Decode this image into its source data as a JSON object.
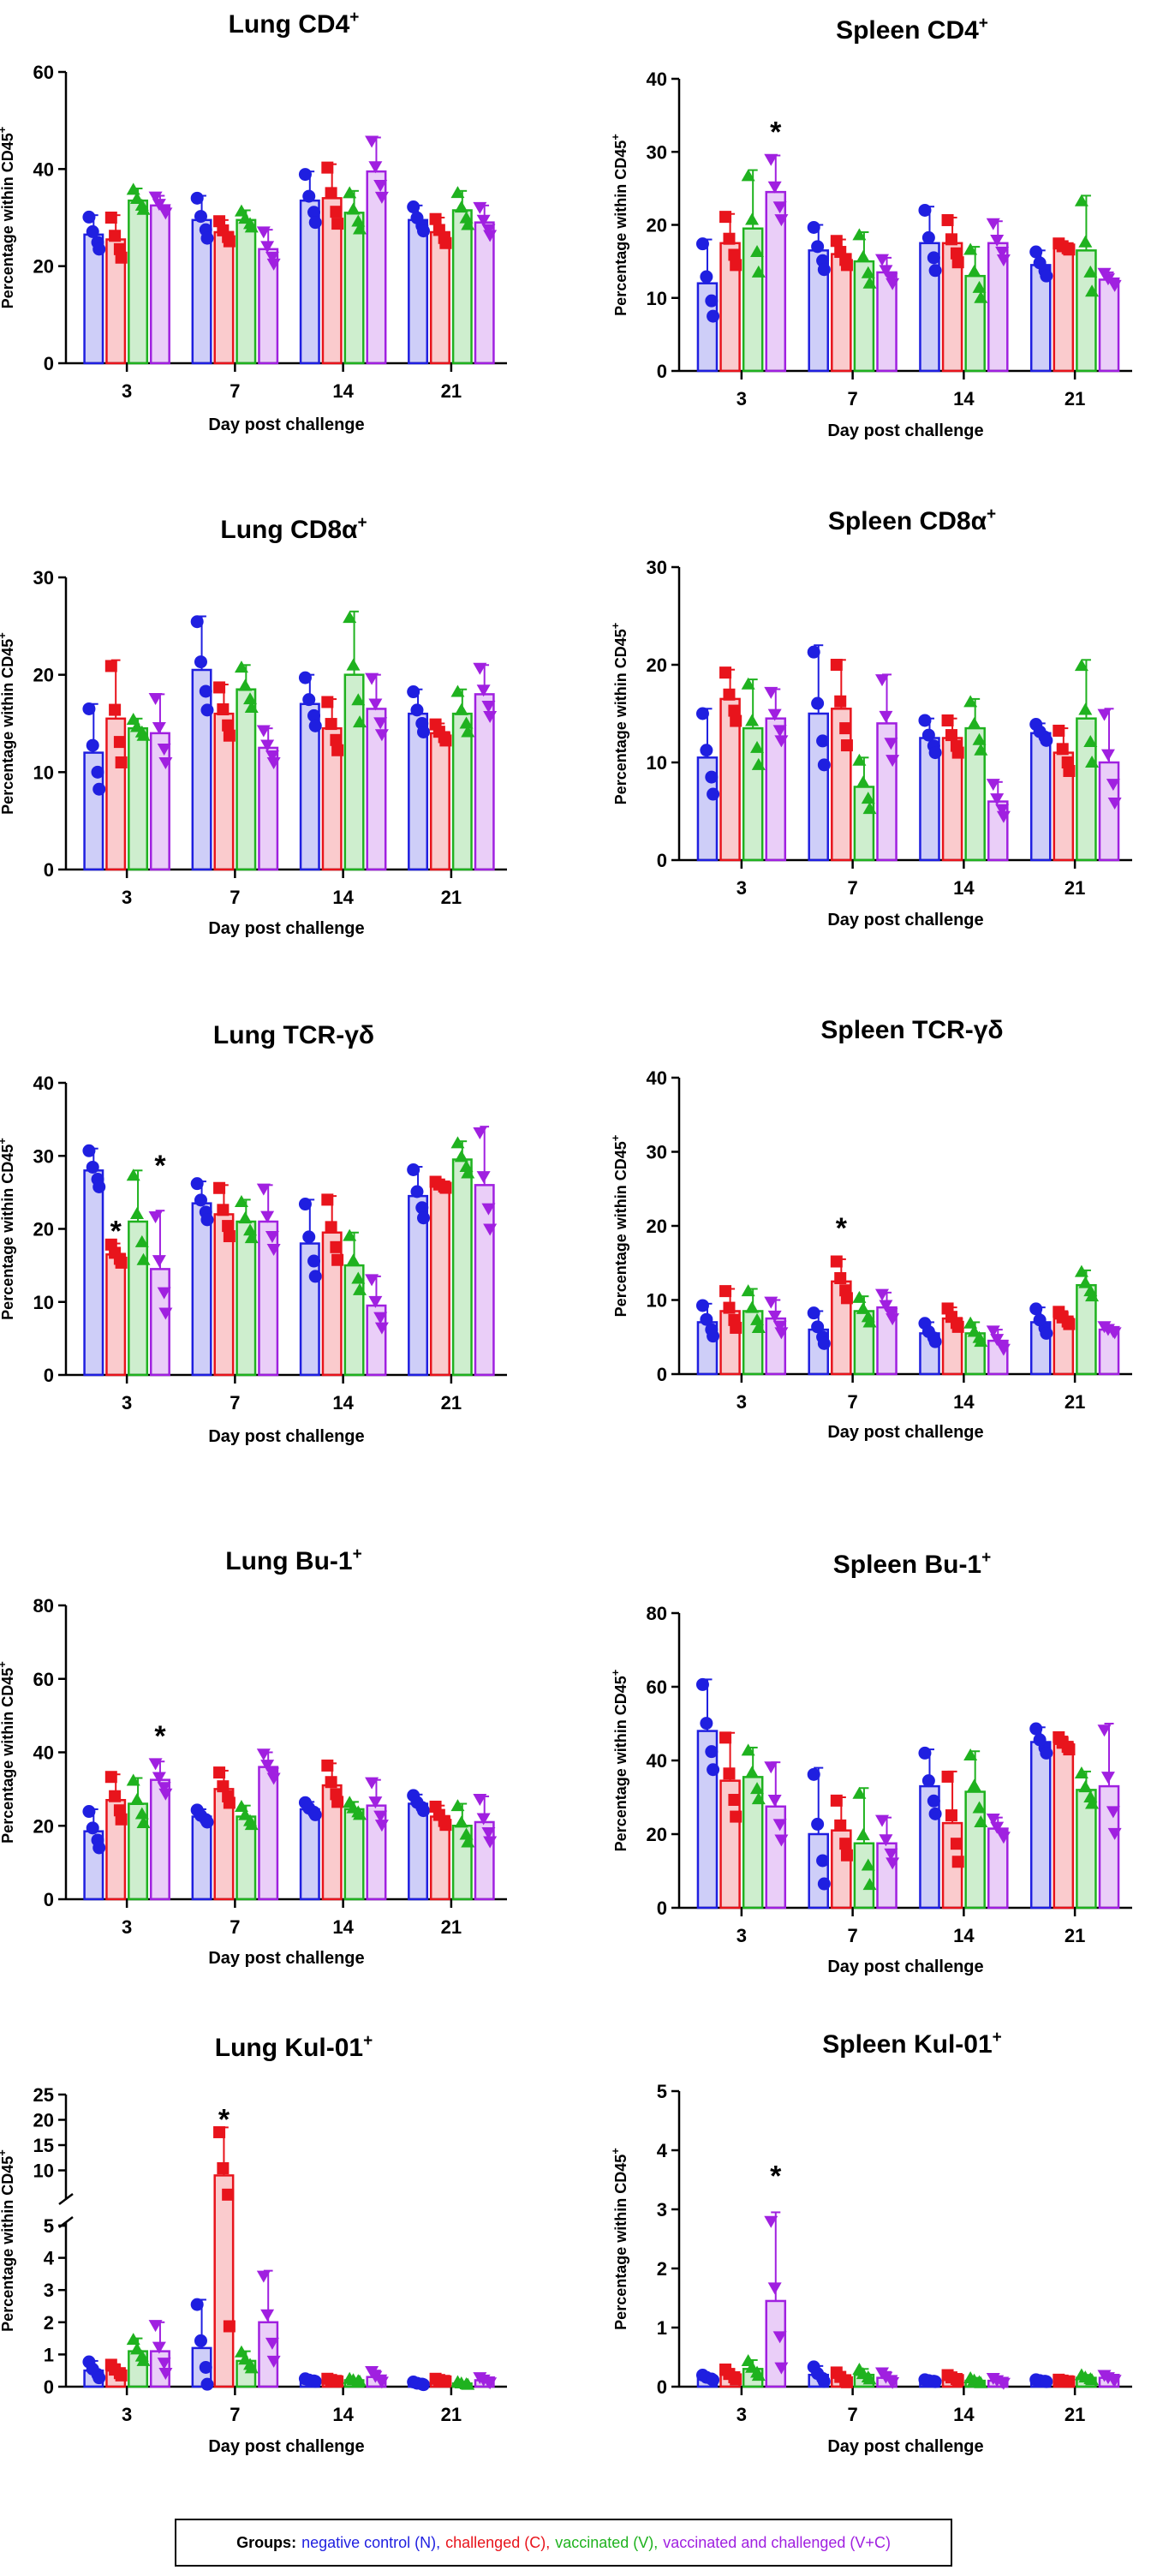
{
  "chart_data": [
    {
      "type": "bar",
      "title": "Lung CD4",
      "title_sup": "+",
      "ylabel": "Percentage within CD45",
      "ylabel_sup": "+",
      "xlabel": "Day post challenge",
      "categories": [
        "3",
        "7",
        "14",
        "21"
      ],
      "ylim": [
        0,
        60
      ],
      "yticks": [
        0,
        20,
        40,
        60
      ],
      "series": [
        {
          "name": "N",
          "values": [
            26.5,
            29.5,
            33.5,
            29.5
          ],
          "errors": [
            4,
            5,
            6,
            3
          ]
        },
        {
          "name": "C",
          "values": [
            25.5,
            27,
            34,
            27
          ],
          "errors": [
            5,
            2.5,
            7,
            3
          ]
        },
        {
          "name": "V",
          "values": [
            33.5,
            29.5,
            31,
            31.5
          ],
          "errors": [
            2.5,
            2,
            4.5,
            4
          ]
        },
        {
          "name": "V+C",
          "values": [
            32.5,
            23.5,
            39.5,
            29
          ],
          "errors": [
            2,
            4,
            7,
            3.5
          ]
        }
      ],
      "annotations": []
    },
    {
      "type": "bar",
      "title": "Spleen CD4",
      "title_sup": "+",
      "ylabel": "Percentage within CD45",
      "ylabel_sup": "+",
      "xlabel": "Day post challenge",
      "categories": [
        "3",
        "7",
        "14",
        "21"
      ],
      "ylim": [
        0,
        40
      ],
      "yticks": [
        0,
        10,
        20,
        30,
        40
      ],
      "series": [
        {
          "name": "N",
          "values": [
            12,
            16.5,
            17.5,
            14.5
          ],
          "errors": [
            6,
            3.5,
            5,
            2
          ]
        },
        {
          "name": "C",
          "values": [
            17.5,
            16,
            17.5,
            17
          ],
          "errors": [
            4,
            2,
            3.5,
            0.5
          ]
        },
        {
          "name": "V",
          "values": [
            19.5,
            15,
            13,
            16.5
          ],
          "errors": [
            8,
            4,
            4,
            7.5
          ]
        },
        {
          "name": "V+C",
          "values": [
            24.5,
            13.5,
            17.5,
            12.5
          ],
          "errors": [
            5,
            2,
            3,
            1
          ]
        }
      ],
      "annotations": [
        {
          "text": "*",
          "category": "3",
          "series": "V+C",
          "value": 33
        }
      ]
    },
    {
      "type": "bar",
      "title": "Lung CD8α",
      "title_sup": "+",
      "ylabel": "Percentage within CD45",
      "ylabel_sup": "+",
      "xlabel": "Day post challenge",
      "categories": [
        "3",
        "7",
        "14",
        "21"
      ],
      "ylim": [
        0,
        30
      ],
      "yticks": [
        0,
        10,
        20,
        30
      ],
      "series": [
        {
          "name": "N",
          "values": [
            12,
            20.5,
            17,
            16
          ],
          "errors": [
            5,
            5.5,
            3,
            2.5
          ]
        },
        {
          "name": "C",
          "values": [
            15.5,
            16,
            14.5,
            14
          ],
          "errors": [
            6,
            3,
            3,
            1
          ]
        },
        {
          "name": "V",
          "values": [
            14.5,
            18.5,
            20,
            16
          ],
          "errors": [
            1,
            2.5,
            6.5,
            2.5
          ]
        },
        {
          "name": "V+C",
          "values": [
            14,
            12.5,
            16.5,
            18
          ],
          "errors": [
            4,
            2,
            3.5,
            3
          ]
        }
      ],
      "annotations": []
    },
    {
      "type": "bar",
      "title": "Spleen CD8α",
      "title_sup": "+",
      "ylabel": "Percentage within CD45",
      "ylabel_sup": "+",
      "xlabel": "Day post challenge",
      "categories": [
        "3",
        "7",
        "14",
        "21"
      ],
      "ylim": [
        0,
        30
      ],
      "yticks": [
        0,
        10,
        20,
        30
      ],
      "series": [
        {
          "name": "N",
          "values": [
            10.5,
            15,
            12.5,
            13
          ],
          "errors": [
            5,
            7,
            2,
            1
          ]
        },
        {
          "name": "C",
          "values": [
            16.5,
            15.5,
            12.5,
            11
          ],
          "errors": [
            3,
            5,
            2,
            2.5
          ]
        },
        {
          "name": "V",
          "values": [
            13.5,
            7.5,
            13.5,
            14.5
          ],
          "errors": [
            5,
            3,
            3,
            6
          ]
        },
        {
          "name": "V+C",
          "values": [
            14.5,
            14,
            6,
            10
          ],
          "errors": [
            3,
            5,
            2,
            5.5
          ]
        }
      ],
      "annotations": []
    },
    {
      "type": "bar",
      "title": "Lung TCR-γδ",
      "title_sup": "",
      "ylabel": "Percentage within CD45",
      "ylabel_sup": "+",
      "xlabel": "Day post challenge",
      "categories": [
        "3",
        "7",
        "14",
        "21"
      ],
      "ylim": [
        0,
        40
      ],
      "yticks": [
        0,
        10,
        20,
        30,
        40
      ],
      "series": [
        {
          "name": "N",
          "values": [
            28,
            23.5,
            18,
            24.5
          ],
          "errors": [
            3,
            3,
            6,
            4
          ]
        },
        {
          "name": "C",
          "values": [
            16.5,
            22,
            19.5,
            26
          ],
          "errors": [
            1.5,
            4,
            5,
            0.5
          ]
        },
        {
          "name": "V",
          "values": [
            21,
            21,
            15,
            29.5
          ],
          "errors": [
            7,
            3,
            4.5,
            2.5
          ]
        },
        {
          "name": "V+C",
          "values": [
            14.5,
            21,
            9.5,
            26
          ],
          "errors": [
            8,
            5,
            4,
            8
          ]
        }
      ],
      "annotations": [
        {
          "text": "*",
          "category": "3",
          "series": "C",
          "value": 20
        },
        {
          "text": "*",
          "category": "3",
          "series": "V+C",
          "value": 29
        }
      ]
    },
    {
      "type": "bar",
      "title": "Spleen TCR-γδ",
      "title_sup": "",
      "ylabel": "Percentage within CD45",
      "ylabel_sup": "+",
      "xlabel": "Day post challenge",
      "categories": [
        "3",
        "7",
        "14",
        "21"
      ],
      "ylim": [
        0,
        40
      ],
      "yticks": [
        0,
        10,
        20,
        30,
        40
      ],
      "series": [
        {
          "name": "N",
          "values": [
            7,
            6,
            5.5,
            7
          ],
          "errors": [
            2.5,
            2.5,
            1.5,
            2
          ]
        },
        {
          "name": "C",
          "values": [
            8.5,
            12.5,
            7.5,
            7.5
          ],
          "errors": [
            3,
            3,
            1.5,
            1
          ]
        },
        {
          "name": "V",
          "values": [
            8.5,
            8.5,
            5.5,
            12
          ],
          "errors": [
            3,
            2,
            1.5,
            2
          ]
        },
        {
          "name": "V+C",
          "values": [
            7.5,
            9,
            4.5,
            6
          ],
          "errors": [
            2.5,
            2,
            1.5,
            0.5
          ]
        }
      ],
      "annotations": [
        {
          "text": "*",
          "category": "7",
          "series": "C",
          "value": 20
        }
      ]
    },
    {
      "type": "bar",
      "title": "Lung Bu-1",
      "title_sup": "+",
      "ylabel": "Percentage within CD45",
      "ylabel_sup": "+",
      "xlabel": "Day post challenge",
      "categories": [
        "3",
        "7",
        "14",
        "21"
      ],
      "ylim": [
        0,
        80
      ],
      "yticks": [
        0,
        20,
        40,
        60,
        80
      ],
      "series": [
        {
          "name": "N",
          "values": [
            18.5,
            22.5,
            24.5,
            26
          ],
          "errors": [
            6,
            2,
            2,
            2.5
          ]
        },
        {
          "name": "C",
          "values": [
            27,
            30,
            31,
            22.5
          ],
          "errors": [
            7,
            5,
            6,
            3
          ]
        },
        {
          "name": "V",
          "values": [
            26,
            22.5,
            24.5,
            20
          ],
          "errors": [
            7,
            3,
            2,
            6
          ]
        },
        {
          "name": "V+C",
          "values": [
            32.5,
            36,
            25.5,
            21
          ],
          "errors": [
            5,
            4,
            7,
            7
          ]
        }
      ],
      "annotations": [
        {
          "text": "*",
          "category": "3",
          "series": "V+C",
          "value": 45
        }
      ]
    },
    {
      "type": "bar",
      "title": "Spleen Bu-1",
      "title_sup": "+",
      "ylabel": "Percentage within CD45",
      "ylabel_sup": "+",
      "xlabel": "Day post challenge",
      "categories": [
        "3",
        "7",
        "14",
        "21"
      ],
      "ylim": [
        0,
        80
      ],
      "yticks": [
        0,
        20,
        40,
        60,
        80
      ],
      "series": [
        {
          "name": "N",
          "values": [
            48,
            20,
            33,
            45
          ],
          "errors": [
            14,
            18,
            10,
            4
          ]
        },
        {
          "name": "C",
          "values": [
            34.5,
            21,
            23,
            44.5
          ],
          "errors": [
            13,
            9,
            14,
            2
          ]
        },
        {
          "name": "V",
          "values": [
            35.5,
            17.5,
            31.5,
            32
          ],
          "errors": [
            8,
            15,
            11,
            5
          ]
        },
        {
          "name": "V+C",
          "values": [
            27.5,
            17.5,
            21.5,
            33
          ],
          "errors": [
            12,
            7,
            3,
            17
          ]
        }
      ],
      "annotations": []
    },
    {
      "type": "bar",
      "title": "Lung Kul-01",
      "title_sup": "+",
      "ylabel": "Percentage within CD45",
      "ylabel_sup": "+",
      "xlabel": "Day post challenge",
      "categories": [
        "3",
        "7",
        "14",
        "21"
      ],
      "broken_axis": true,
      "ylim_lower": [
        0,
        5
      ],
      "ylim_upper": [
        5,
        25
      ],
      "yticks_lower": [
        0,
        1,
        2,
        3,
        4,
        5
      ],
      "yticks_upper": [
        5,
        10,
        15,
        20,
        25
      ],
      "series": [
        {
          "name": "N",
          "values": [
            0.5,
            1.2,
            0.2,
            0.1
          ],
          "errors": [
            0.3,
            1.5,
            0.05,
            0.05
          ]
        },
        {
          "name": "C",
          "values": [
            0.5,
            9,
            0.2,
            0.2
          ],
          "errors": [
            0.2,
            9.5,
            0.05,
            0.05
          ]
        },
        {
          "name": "V",
          "values": [
            1.1,
            0.8,
            0.2,
            0.1
          ],
          "errors": [
            0.4,
            0.3,
            0.05,
            0.05
          ]
        },
        {
          "name": "V+C",
          "values": [
            1.1,
            2,
            0.3,
            0.2
          ],
          "errors": [
            0.9,
            1.6,
            0.2,
            0.1
          ]
        }
      ],
      "annotations": [
        {
          "text": "*",
          "category": "7",
          "series": "C",
          "value": 20.5
        }
      ]
    },
    {
      "type": "bar",
      "title": "Spleen Kul-01",
      "title_sup": "+",
      "ylabel": "Percentage within CD45",
      "ylabel_sup": "+",
      "xlabel": "Day post challenge",
      "categories": [
        "3",
        "7",
        "14",
        "21"
      ],
      "ylim": [
        0,
        5
      ],
      "yticks": [
        0,
        1,
        2,
        3,
        4,
        5
      ],
      "series": [
        {
          "name": "N",
          "values": [
            0.15,
            0.2,
            0.1,
            0.1
          ],
          "errors": [
            0.05,
            0.15,
            0.02,
            0.02
          ]
        },
        {
          "name": "C",
          "values": [
            0.2,
            0.15,
            0.15,
            0.1
          ],
          "errors": [
            0.1,
            0.1,
            0.05,
            0.02
          ]
        },
        {
          "name": "V",
          "values": [
            0.3,
            0.2,
            0.1,
            0.15
          ],
          "errors": [
            0.15,
            0.1,
            0.05,
            0.05
          ]
        },
        {
          "name": "V+C",
          "values": [
            1.45,
            0.15,
            0.1,
            0.15
          ],
          "errors": [
            1.5,
            0.1,
            0.05,
            0.05
          ]
        }
      ],
      "annotations": [
        {
          "text": "*",
          "category": "3",
          "series": "V+C",
          "value": 3.6
        }
      ]
    }
  ],
  "colors": {
    "N": "#1f1fe0",
    "C": "#e8141c",
    "V": "#1fb21f",
    "V+C": "#a020e0"
  },
  "legend": {
    "label": "Groups:",
    "items": [
      {
        "text": "negative control (N),",
        "group": "N"
      },
      {
        "text": "challenged (C),",
        "group": "C"
      },
      {
        "text": "vaccinated (V),",
        "group": "V"
      },
      {
        "text": "vaccinated and challenged (V+C)",
        "group": "V+C"
      }
    ]
  }
}
